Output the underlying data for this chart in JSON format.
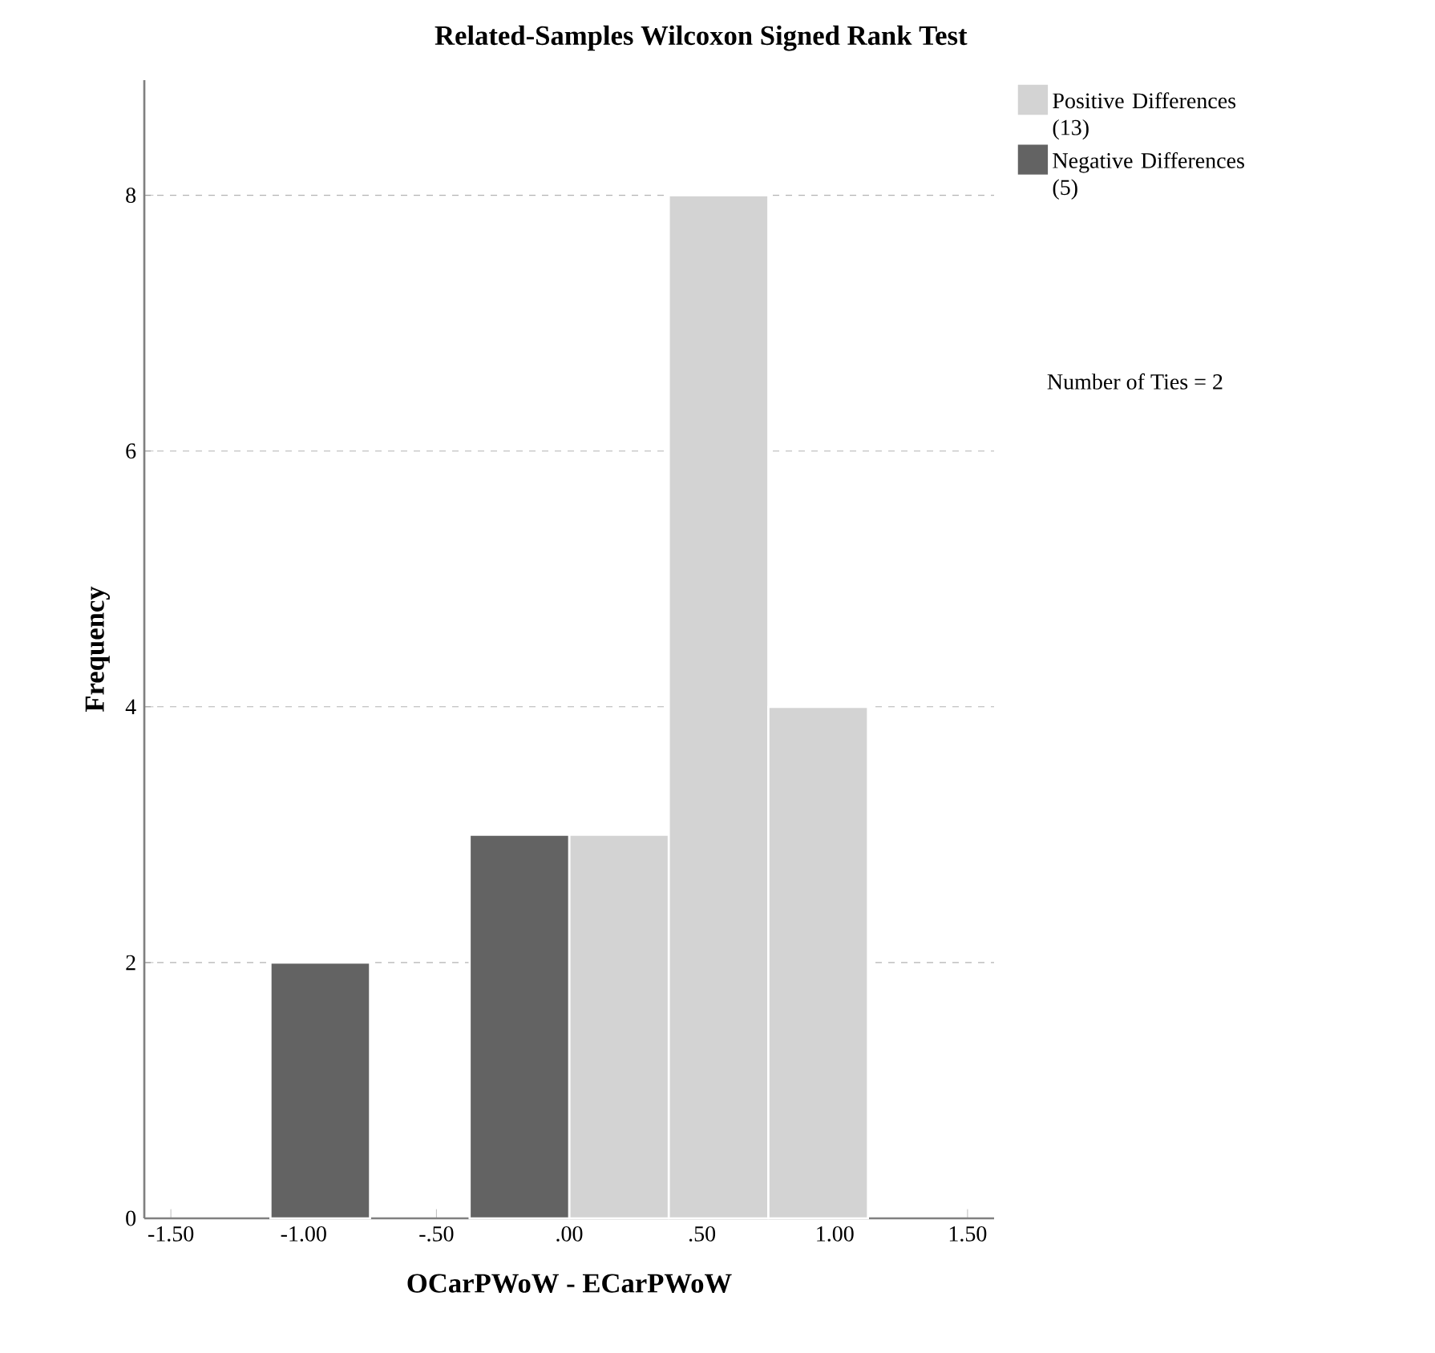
{
  "chart_data": {
    "type": "histogram",
    "title": "Related-Samples Wilcoxon Signed Rank Test",
    "xlabel": "OCarPWoW - ECarPWoW",
    "ylabel": "Frequency",
    "bins": [
      -1.125,
      -0.75,
      -0.375,
      0,
      0.375,
      0.75,
      1.125
    ],
    "series": [
      {
        "name": "Positive Differences (13)",
        "color": "#d3d3d3",
        "values": [
          null,
          null,
          null,
          3,
          8,
          4
        ]
      },
      {
        "name": "Negative Differences (5)",
        "color": "#636363",
        "values": [
          2,
          null,
          3,
          null,
          null,
          null
        ]
      }
    ],
    "xlim": [
      -1.6,
      1.6
    ],
    "xticks": [
      {
        "value": -1.5,
        "label": "-1.50"
      },
      {
        "value": -1,
        "label": "-1.00"
      },
      {
        "value": -0.5,
        "label": "-.50"
      },
      {
        "value": 0,
        "label": ".00"
      },
      {
        "value": 0.5,
        "label": ".50"
      },
      {
        "value": 1,
        "label": "1.00"
      },
      {
        "value": 1.5,
        "label": "1.50"
      }
    ],
    "ylim": [
      0,
      8.9
    ],
    "yticks": [
      0,
      2,
      4,
      6,
      8
    ],
    "grid": "y",
    "legend": "top right",
    "annotations": [
      "Number of Ties = 2"
    ]
  }
}
